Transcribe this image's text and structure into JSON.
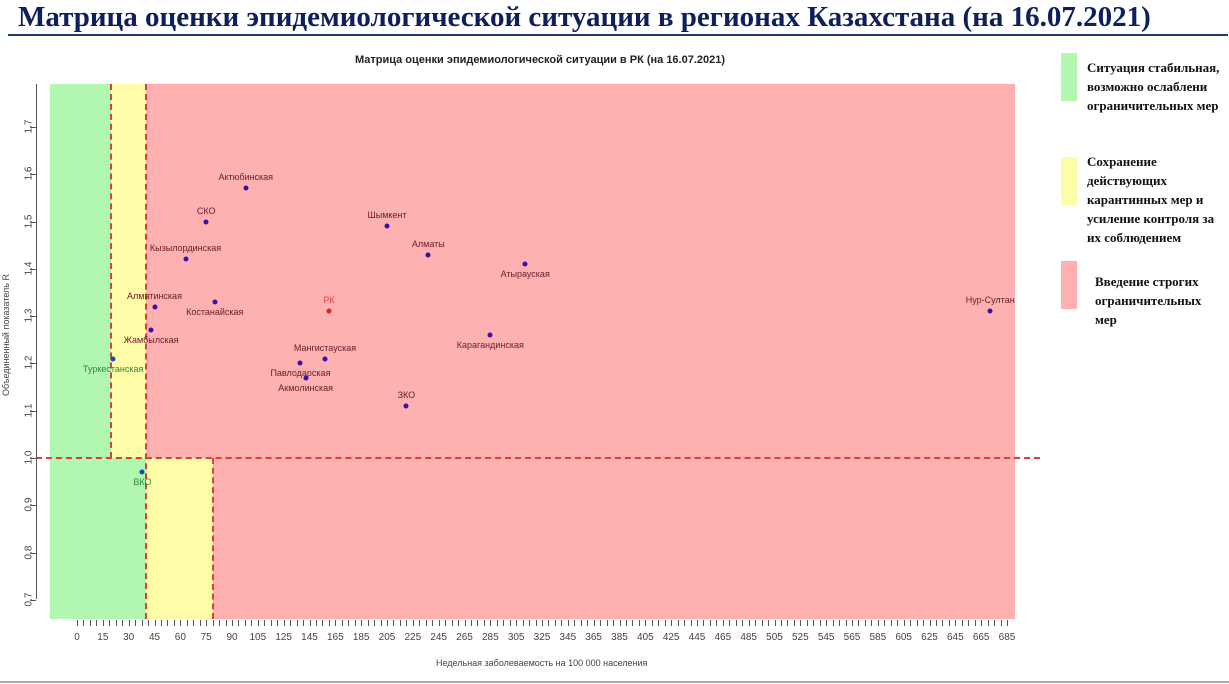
{
  "slide": {
    "title": "Матрица оценки эпидемиологической ситуации в регионах Казахстана (на 16.07.2021)"
  },
  "legend": [
    {
      "color": "#b2f7b0",
      "label": "Ситуация стабильная, возможно ослаблени ограничительных мер"
    },
    {
      "color": "#fffca8",
      "label": "Сохранение действующих карантинных мер и усиление контроля за их соблюдением"
    },
    {
      "color": "#ffb0b0",
      "label": "Введение строгих ограничительных мер"
    }
  ],
  "chart_data": {
    "type": "scatter",
    "title": "Матрица оценки эпидемиологической ситуации в РК (на 16.07.2021)",
    "xlabel": "Недельная заболеваемость на 100 000 населения",
    "ylabel": "Объединенный показатель R",
    "x_tick_labels": [
      "0",
      "15",
      "30",
      "45",
      "60",
      "75",
      "90",
      "105",
      "125",
      "145",
      "165",
      "185",
      "205",
      "225",
      "245",
      "265",
      "285",
      "305",
      "325",
      "345",
      "365",
      "385",
      "405",
      "425",
      "445",
      "465",
      "485",
      "505",
      "525",
      "545",
      "565",
      "585",
      "605",
      "625",
      "645",
      "665",
      "685"
    ],
    "y_tick_labels": [
      "0.7",
      "0.8",
      "0.9",
      "1.0",
      "1.1",
      "1.2",
      "1.3",
      "1.4",
      "1.5",
      "1.6",
      "1.7"
    ],
    "ylim": [
      0.66,
      1.79
    ],
    "xlim": [
      0,
      685
    ],
    "grid": false,
    "zones": [
      {
        "name": "green",
        "color": "#b2f7b0",
        "rule": "R>=1: incidence<25; R<1: incidence<50"
      },
      {
        "name": "yellow",
        "color": "#fffca8",
        "rule": "R>=1: 25-50; R<1: 50-100"
      },
      {
        "name": "red",
        "color": "#ffb0b0",
        "rule": "R>=1: >50; R<1: >100"
      }
    ],
    "threshold_lines": {
      "vertical_upper": [
        25,
        50
      ],
      "vertical_lower": [
        50,
        100
      ],
      "horizontal": 1.0
    },
    "points": [
      {
        "label": "Актюбинская",
        "x": 98,
        "y": 1.57,
        "color": "#3a10a8"
      },
      {
        "label": "СКО",
        "x": 75,
        "y": 1.5,
        "color": "#3a10a8"
      },
      {
        "label": "Кызылординская",
        "x": 63,
        "y": 1.42,
        "color": "#3a10a8"
      },
      {
        "label": "Шымкент",
        "x": 205,
        "y": 1.49,
        "color": "#3a10a8"
      },
      {
        "label": "Алматы",
        "x": 237,
        "y": 1.43,
        "color": "#3a10a8"
      },
      {
        "label": "Атырауская",
        "x": 312,
        "y": 1.41,
        "color": "#3a10a8"
      },
      {
        "label": "Алматинская",
        "x": 45,
        "y": 1.32,
        "color": "#3a10a8"
      },
      {
        "label": "Костанайская",
        "x": 80,
        "y": 1.33,
        "color": "#3a10a8"
      },
      {
        "label": "РК",
        "x": 160,
        "y": 1.31,
        "color": "#e02020"
      },
      {
        "label": "Нур-Султан",
        "x": 672,
        "y": 1.31,
        "color": "#3a10a8"
      },
      {
        "label": "Жамбылская",
        "x": 43,
        "y": 1.27,
        "color": "#3a10a8"
      },
      {
        "label": "Карагандинская",
        "x": 285,
        "y": 1.26,
        "color": "#3a10a8"
      },
      {
        "label": "Туркестанская",
        "x": 21,
        "y": 1.21,
        "color": "#1a4aa8"
      },
      {
        "label": "Мангистауская",
        "x": 157,
        "y": 1.21,
        "color": "#3a10a8"
      },
      {
        "label": "Павлодарская",
        "x": 138,
        "y": 1.2,
        "color": "#3a10a8"
      },
      {
        "label": "Акмолинская",
        "x": 142,
        "y": 1.17,
        "color": "#3a10a8"
      },
      {
        "label": "ЗКО",
        "x": 220,
        "y": 1.11,
        "color": "#3a10a8"
      },
      {
        "label": "ВКО",
        "x": 38,
        "y": 0.97,
        "color": "#1a4aa8"
      }
    ]
  }
}
